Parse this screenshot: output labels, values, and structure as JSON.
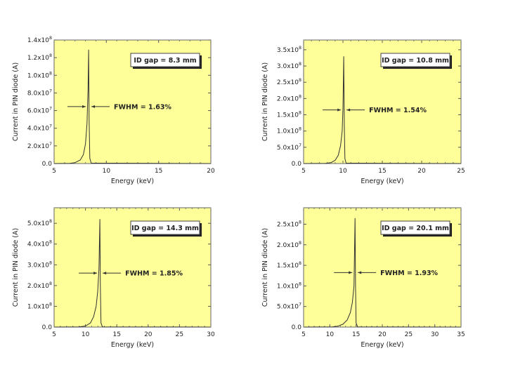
{
  "chart_data": [
    {
      "type": "line",
      "xlabel": "Energy (keV)",
      "ylabel": "Current in PIN diode (A)",
      "xlim": [
        5,
        20
      ],
      "xticks": [
        "5",
        "10",
        "15",
        "20"
      ],
      "ylim": [
        0,
        140000000.0
      ],
      "yticks": [
        {
          "value": 0,
          "label": "0.0"
        },
        {
          "value": 20000000.0,
          "label": "2.0x10^7"
        },
        {
          "value": 40000000.0,
          "label": "4.0x10^7"
        },
        {
          "value": 60000000.0,
          "label": "6.0x10^7"
        },
        {
          "value": 80000000.0,
          "label": "8.0x10^7"
        },
        {
          "value": 100000000.0,
          "label": "1.0x10^8"
        },
        {
          "value": 120000000.0,
          "label": "1.2x10^8"
        },
        {
          "value": 140000000.0,
          "label": "1.4x10^8"
        }
      ],
      "annotation_box": "ID gap = 8.3 mm",
      "fwhm_label": "FWHM = 1.63%",
      "peak": {
        "energy": 8.3,
        "current": 129000000.0
      },
      "series": [
        {
          "x": [
            5,
            6.5,
            7,
            7.5,
            7.8,
            8.0,
            8.15,
            8.25,
            8.3,
            8.35,
            8.42,
            8.55,
            20
          ],
          "y": [
            0,
            200000.0,
            1000000.0,
            4000000.0,
            10000000.0,
            22000000.0,
            45000000.0,
            85000000.0,
            129000000.0,
            50000000.0,
            6000000.0,
            500000.0,
            0
          ]
        }
      ],
      "background": "#ffff99",
      "grid": false
    },
    {
      "type": "line",
      "xlabel": "Energy (keV)",
      "ylabel": "Current in PIN diode (A)",
      "xlim": [
        5,
        25
      ],
      "xticks": [
        "5",
        "10",
        "15",
        "20",
        "25"
      ],
      "ylim": [
        0,
        380000000.0
      ],
      "yticks": [
        {
          "value": 0,
          "label": "0.0"
        },
        {
          "value": 50000000.0,
          "label": "5.0x10^7"
        },
        {
          "value": 100000000.0,
          "label": "1.0x10^8"
        },
        {
          "value": 150000000.0,
          "label": "1.5x10^8"
        },
        {
          "value": 200000000.0,
          "label": "2.0x10^8"
        },
        {
          "value": 250000000.0,
          "label": "2.5x10^8"
        },
        {
          "value": 300000000.0,
          "label": "3.0x10^8"
        },
        {
          "value": 350000000.0,
          "label": "3.5x10^8"
        }
      ],
      "annotation_box": "ID gap = 10.8 mm",
      "fwhm_label": "FWHM = 1.54%",
      "peak": {
        "energy": 10.1,
        "current": 330000000.0
      },
      "series": [
        {
          "x": [
            5,
            7.8,
            8.5,
            9.0,
            9.4,
            9.7,
            9.9,
            10.0,
            10.1,
            10.17,
            10.25,
            10.4,
            25
          ],
          "y": [
            0,
            500000.0,
            3000000.0,
            10000000.0,
            25000000.0,
            55000000.0,
            100000000.0,
            170000000.0,
            330000000.0,
            120000000.0,
            15000000.0,
            1000000.0,
            0
          ]
        }
      ],
      "background": "#ffff99",
      "grid": false
    },
    {
      "type": "line",
      "xlabel": "Energy (keV)",
      "ylabel": "Current in PIN diode (A)",
      "xlim": [
        5,
        30
      ],
      "xticks": [
        "5",
        "10",
        "15",
        "20",
        "25",
        "30"
      ],
      "ylim": [
        0,
        575000000.0
      ],
      "yticks": [
        {
          "value": 0,
          "label": "0.0"
        },
        {
          "value": 100000000.0,
          "label": "1.0x10^8"
        },
        {
          "value": 200000000.0,
          "label": "2.0x10^8"
        },
        {
          "value": 300000000.0,
          "label": "3.0x10^8"
        },
        {
          "value": 400000000.0,
          "label": "4.0x10^8"
        },
        {
          "value": 500000000.0,
          "label": "5.0x10^8"
        }
      ],
      "annotation_box": "ID gap = 14.3 mm",
      "fwhm_label": "FWHM = 1.85%",
      "peak": {
        "energy": 12.3,
        "current": 520000000.0
      },
      "series": [
        {
          "x": [
            5,
            9,
            10,
            10.8,
            11.3,
            11.7,
            11.95,
            12.15,
            12.3,
            12.38,
            12.48,
            12.7,
            30
          ],
          "y": [
            0,
            1000000.0,
            5000000.0,
            20000000.0,
            50000000.0,
            100000000.0,
            170000000.0,
            280000000.0,
            520000000.0,
            200000000.0,
            20000000.0,
            1000000.0,
            0
          ]
        }
      ],
      "background": "#ffff99",
      "grid": false
    },
    {
      "type": "line",
      "xlabel": "Energy (keV)",
      "ylabel": "Current in PIN diode (A)",
      "xlim": [
        5,
        35
      ],
      "xticks": [
        "5",
        "10",
        "15",
        "20",
        "25",
        "30",
        "35"
      ],
      "ylim": [
        0,
        290000000.0
      ],
      "yticks": [
        {
          "value": 0,
          "label": "0.0"
        },
        {
          "value": 50000000.0,
          "label": "5.0x10^7"
        },
        {
          "value": 100000000.0,
          "label": "1.0x10^8"
        },
        {
          "value": 150000000.0,
          "label": "1.5x10^8"
        },
        {
          "value": 200000000.0,
          "label": "2.0x10^8"
        },
        {
          "value": 250000000.0,
          "label": "2.5x10^8"
        }
      ],
      "annotation_box": "ID gap = 20.1 mm",
      "fwhm_label": "FWHM = 1.93%",
      "peak": {
        "energy": 14.8,
        "current": 265000000.0
      },
      "series": [
        {
          "x": [
            5,
            10.5,
            11.5,
            12.5,
            13.3,
            13.9,
            14.3,
            14.6,
            14.8,
            14.9,
            15.0,
            15.3,
            35
          ],
          "y": [
            0,
            500000.0,
            2000000.0,
            7000000.0,
            17000000.0,
            35000000.0,
            60000000.0,
            100000000.0,
            265000000.0,
            100000000.0,
            10000000.0,
            500000.0,
            0
          ]
        }
      ],
      "background": "#ffff99",
      "grid": false
    }
  ]
}
